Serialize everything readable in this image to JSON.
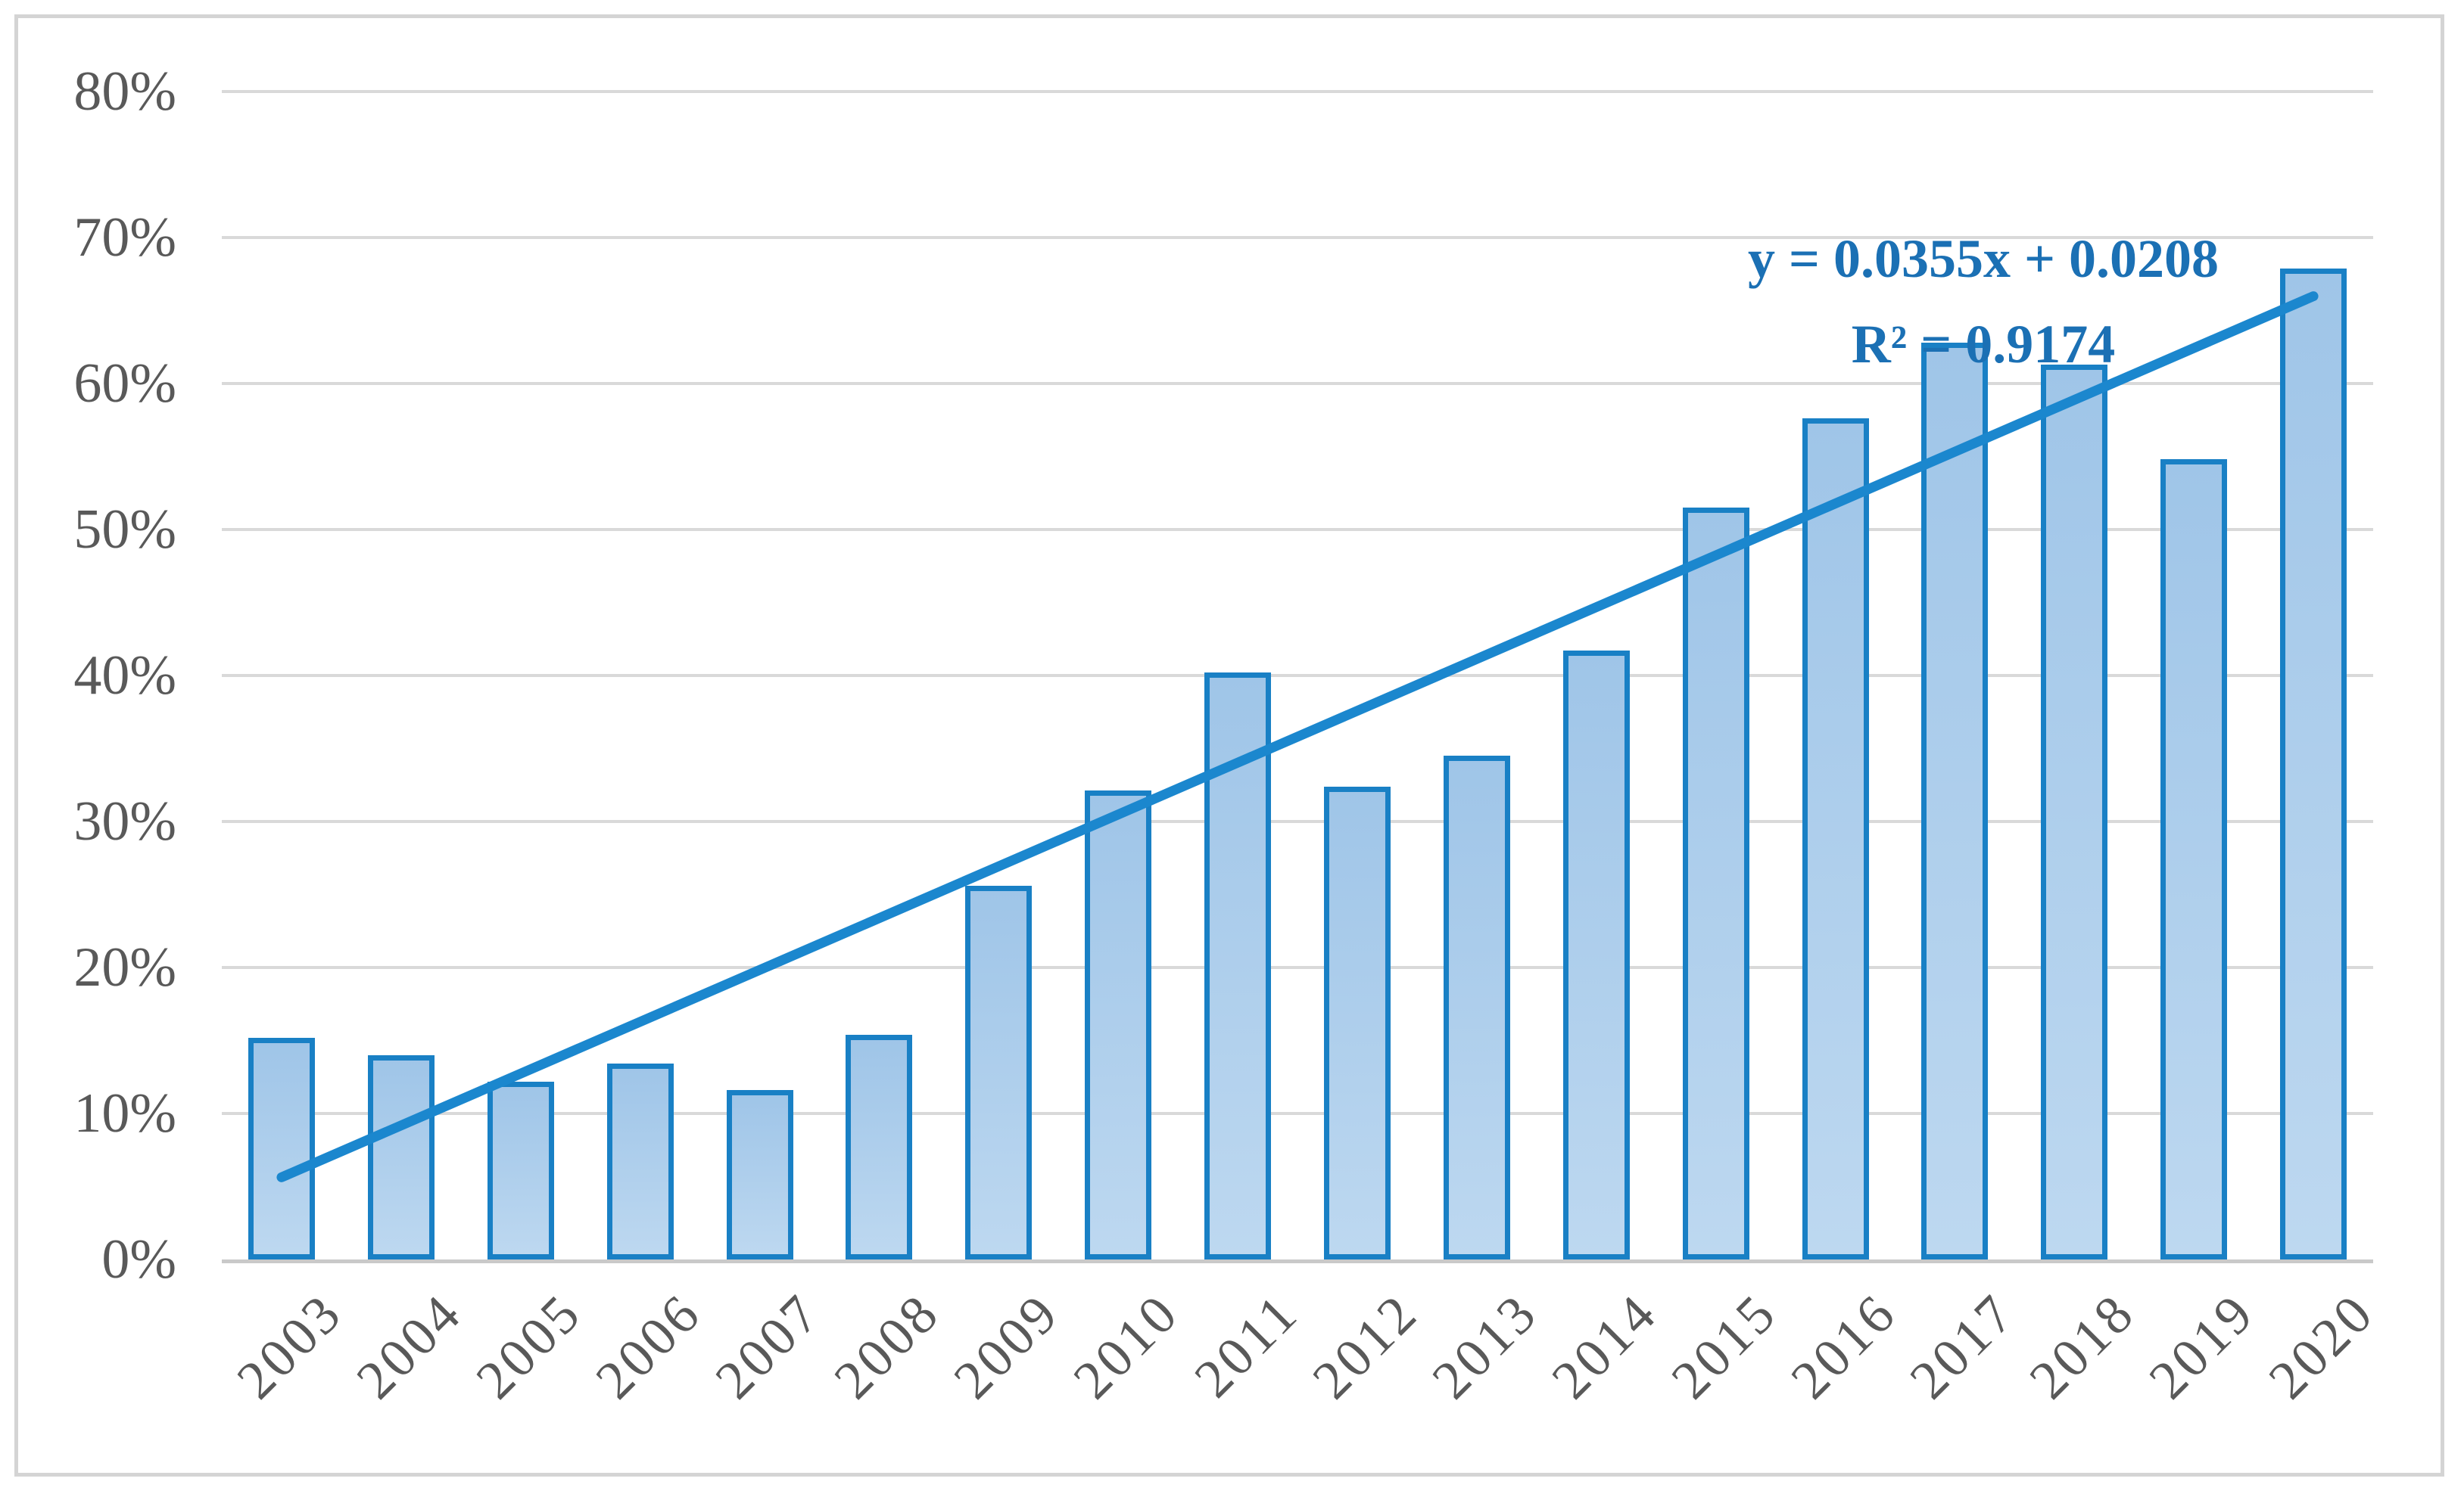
{
  "chart_data": {
    "type": "bar",
    "title": "",
    "xlabel": "",
    "ylabel": "",
    "categories": [
      "2003",
      "2004",
      "2005",
      "2006",
      "2007",
      "2008",
      "2009",
      "2010",
      "2011",
      "2012",
      "2013",
      "2014",
      "2015",
      "2016",
      "2017",
      "2018",
      "2019",
      "2020"
    ],
    "values": [
      15.2,
      14.0,
      12.2,
      13.4,
      11.6,
      15.4,
      25.6,
      32.1,
      40.2,
      32.4,
      34.5,
      41.7,
      51.5,
      57.6,
      62.8,
      61.3,
      54.8,
      67.9
    ],
    "unit": "%",
    "ylim": [
      0,
      80
    ],
    "ytick_step": 10,
    "ytick_labels": [
      "0%",
      "10%",
      "20%",
      "30%",
      "40%",
      "50%",
      "60%",
      "70%",
      "80%"
    ],
    "grid": true,
    "legend": "none",
    "trendline": {
      "type": "linear",
      "slope": 0.0355,
      "intercept": 0.0208,
      "equation_label": "y = 0.0355x + 0.0208",
      "r2_label": "R² = 0.9174"
    }
  },
  "colors": {
    "background": "#FFFFFF",
    "frame_border": "#D4D4D4",
    "gridline": "#D9D9D9",
    "axis_line": "#C9C9C9",
    "tick_text": "#595959",
    "bar_fill_top": "#9FC5E8",
    "bar_fill_bottom": "#BDD8F0",
    "bar_border": "#1980C5",
    "trendline": "#1B87CE",
    "equation_text": "#1B70B4"
  }
}
